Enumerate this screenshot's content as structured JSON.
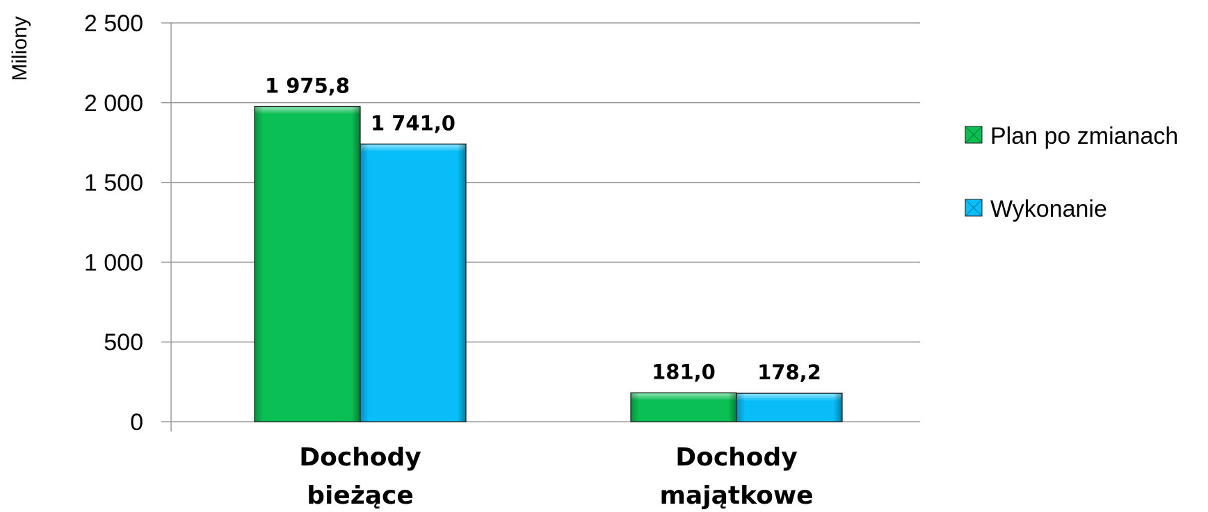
{
  "chart_data": {
    "type": "bar",
    "ylabel": "Miliony",
    "categories": [
      [
        "Dochody",
        "bieżące"
      ],
      [
        "Dochody",
        "majątkowe"
      ]
    ],
    "series": [
      {
        "name": "Plan po zmianach",
        "color": "#0abf53",
        "values": [
          1975.8,
          181.0
        ],
        "labels": [
          "1 975,8",
          "181,0"
        ]
      },
      {
        "name": "Wykonanie",
        "color": "#08bdf8",
        "values": [
          1741.0,
          178.2
        ],
        "labels": [
          "1 741,0",
          "178,2"
        ]
      }
    ],
    "ylim": [
      0,
      2500
    ],
    "yticks": [
      0,
      500,
      1000,
      1500,
      2000,
      2500
    ],
    "ytick_labels": [
      "0",
      "500",
      "1 000",
      "1 500",
      "2 000",
      "2 500"
    ],
    "grid": true,
    "legend_position": "right"
  }
}
